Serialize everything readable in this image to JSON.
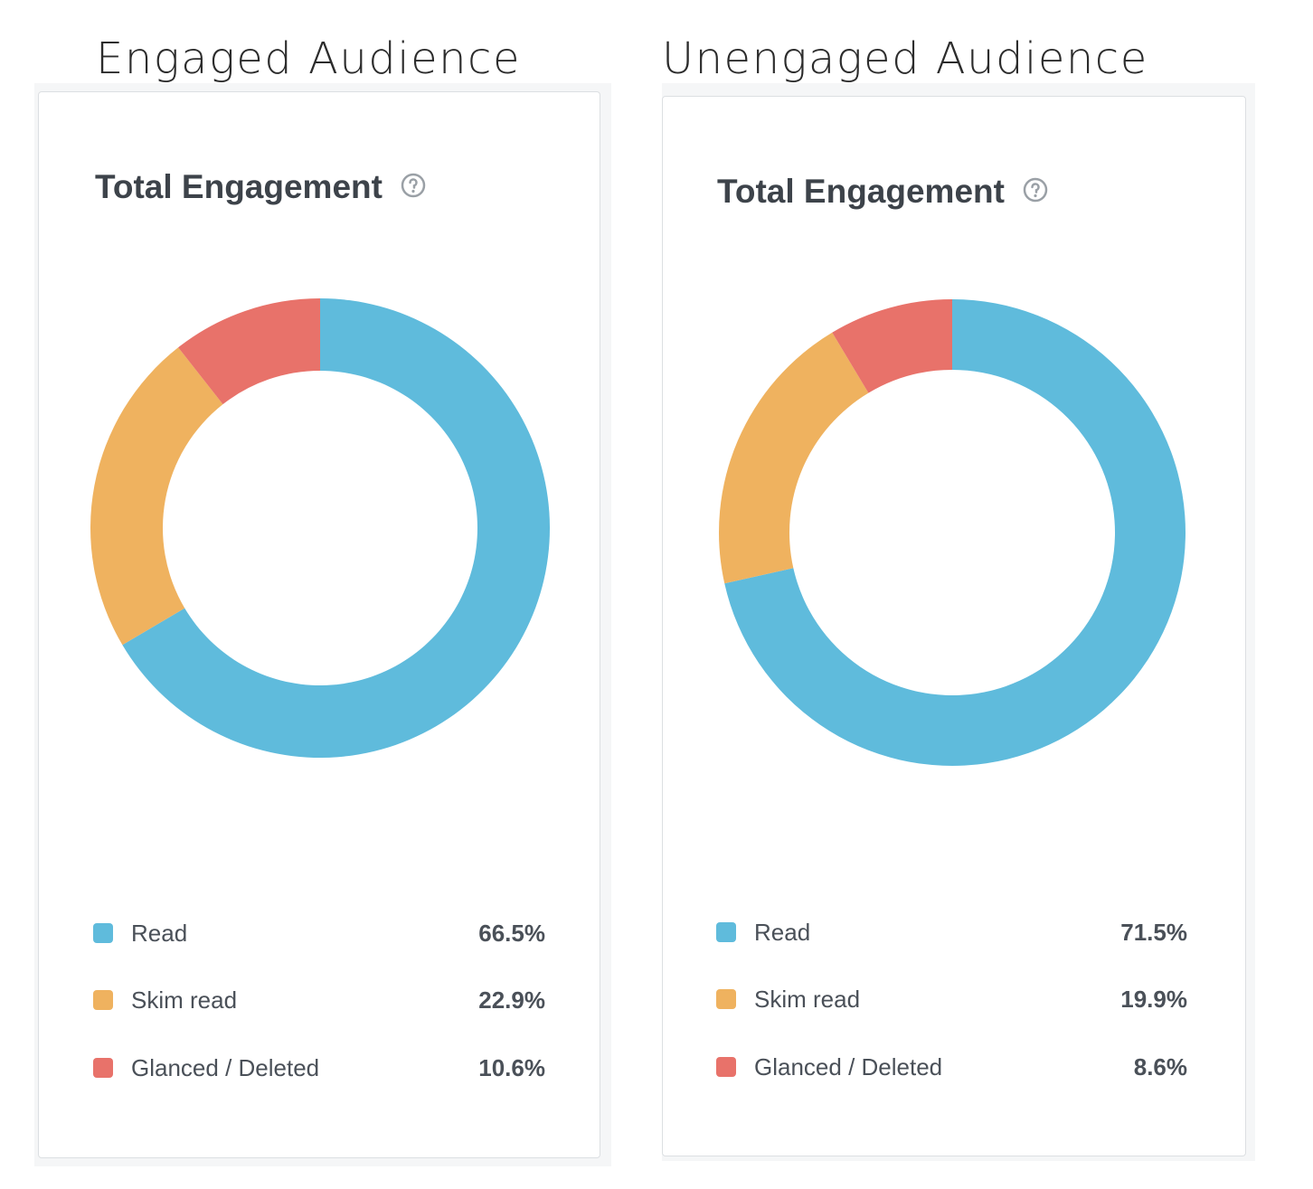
{
  "panels": [
    {
      "heading": "Engaged Audience",
      "card_title": "Total Engagement",
      "help_icon": "question-circle-icon"
    },
    {
      "heading": "Unengaged Audience",
      "card_title": "Total Engagement",
      "help_icon": "question-circle-icon"
    }
  ],
  "colors": {
    "read": "#5fbbdc",
    "skim_read": "#efb25f",
    "glanced_deleted": "#e8726a"
  },
  "chart_data": [
    {
      "type": "pie",
      "title": "Total Engagement",
      "categories": [
        "Read",
        "Skim read",
        "Glanced / Deleted"
      ],
      "values": [
        66.5,
        22.9,
        10.6
      ],
      "value_labels": [
        "66.5%",
        "22.9%",
        "10.6%"
      ],
      "colors": [
        "#5fbbdc",
        "#efb25f",
        "#e8726a"
      ],
      "legend": "bottom"
    },
    {
      "type": "pie",
      "title": "Total Engagement",
      "categories": [
        "Read",
        "Skim read",
        "Glanced / Deleted"
      ],
      "values": [
        71.5,
        19.9,
        8.6
      ],
      "value_labels": [
        "71.5%",
        "19.9%",
        "8.6%"
      ],
      "colors": [
        "#5fbbdc",
        "#efb25f",
        "#e8726a"
      ],
      "legend": "bottom"
    }
  ]
}
